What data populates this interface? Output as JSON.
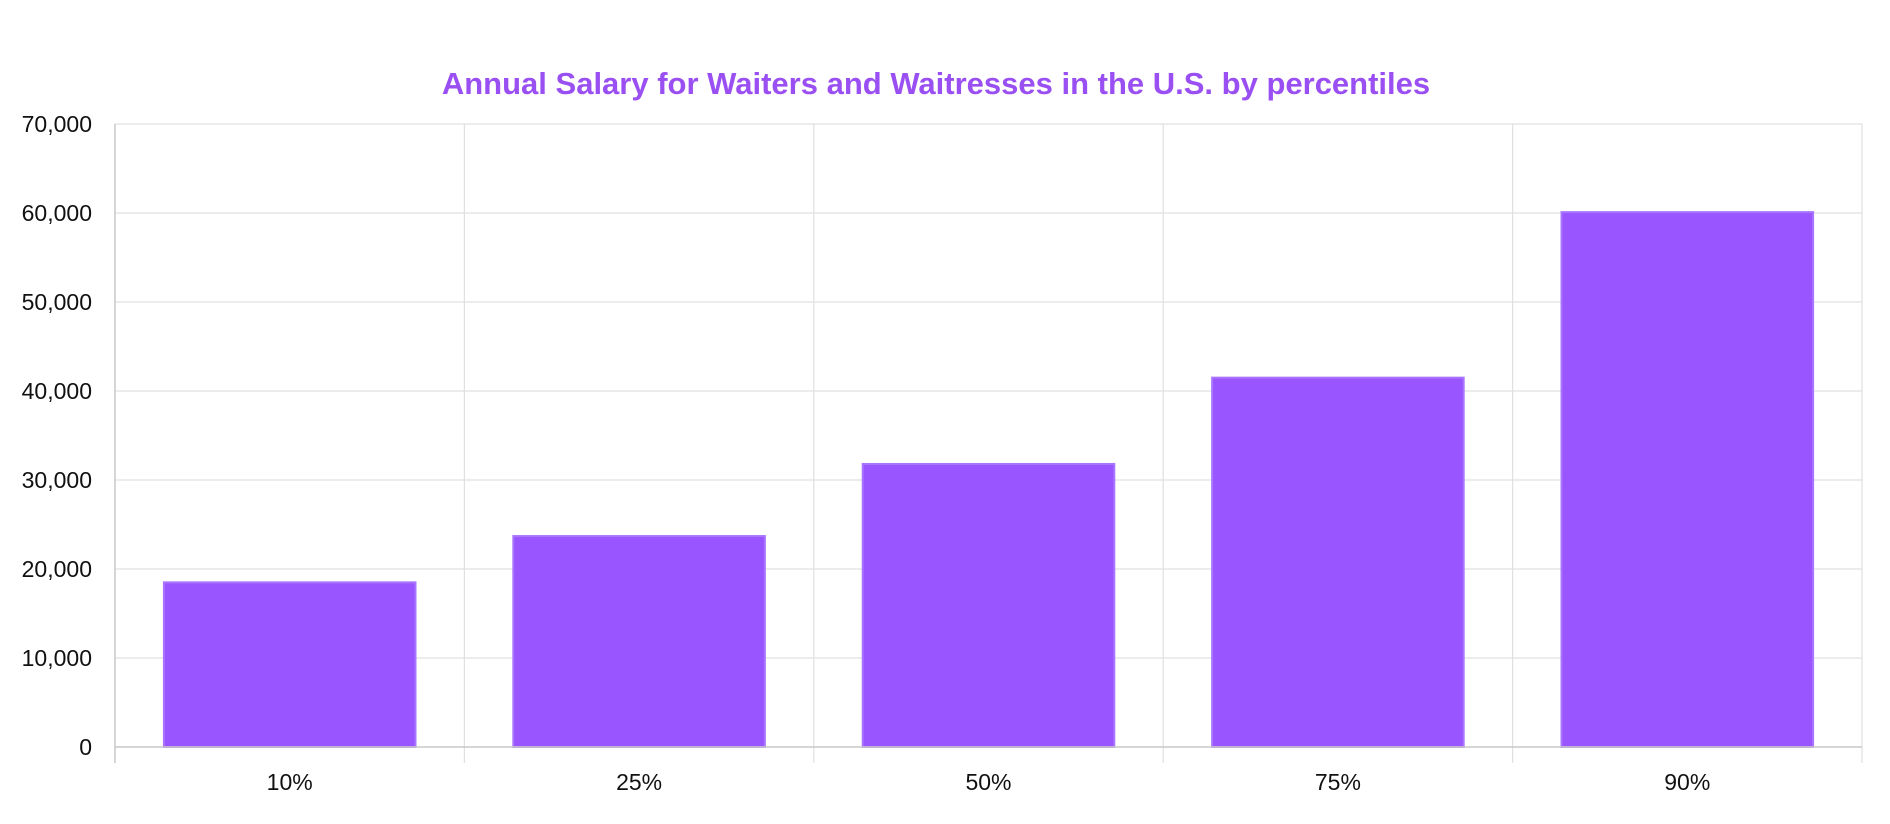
{
  "chart_data": {
    "type": "bar",
    "title": "Annual Salary for Waiters and Waitresses in the U.S. by percentiles",
    "categories": [
      "10%",
      "25%",
      "50%",
      "75%",
      "90%"
    ],
    "values": [
      18500,
      23700,
      31800,
      41500,
      60100
    ],
    "xlabel": "",
    "ylabel": "",
    "ylim": [
      0,
      70000
    ],
    "yticks": [
      "0",
      "10,000",
      "20,000",
      "30,000",
      "40,000",
      "50,000",
      "60,000",
      "70,000"
    ],
    "grid": true,
    "legend": "none",
    "colors": {
      "bar_fill": "#9955ff",
      "bar_border": "#a974ff",
      "title": "#9a4ff2",
      "grid": "#e0e0e0",
      "axis": "#c8c8c8"
    }
  }
}
